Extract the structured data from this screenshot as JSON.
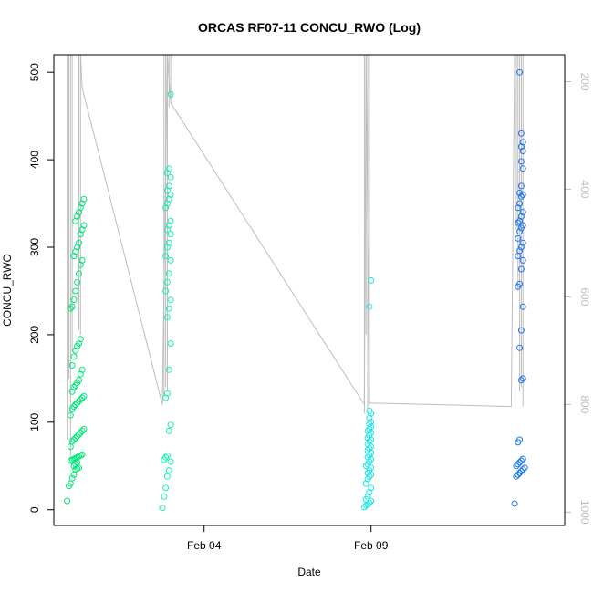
{
  "chart_data": {
    "type": "scatter",
    "title": "ORCAS RF07-11 CONCU_RWO (Log)",
    "xlabel": "Date",
    "ylabel": "CONCU_RWO",
    "x_ticks": [
      "Feb 04",
      "Feb 09"
    ],
    "x_tick_days": [
      4,
      9
    ],
    "xlim_days": [
      -0.5,
      14.8
    ],
    "ylim": [
      -18,
      520
    ],
    "y_ticks": [
      0,
      100,
      200,
      300,
      400,
      500
    ],
    "y2_ticks": [
      200,
      400,
      600,
      800,
      1000
    ],
    "y2lim": [
      1025,
      150
    ],
    "grid": false,
    "colors": {
      "series_a": "#00e676",
      "series_b": "#14f0b4",
      "series_c": "#1ee6e6",
      "series_d": "#1e78f0",
      "trace": "#bdbdbd",
      "frame": "#000000"
    },
    "series": [
      {
        "color_key": "series_a",
        "x": [
          -0.1,
          -0.05,
          0.0,
          0.05,
          0.1,
          0.15,
          0.2,
          0.25,
          0.1,
          0.15,
          0.2,
          0.0,
          0.05,
          0.1,
          0.15,
          0.2,
          0.25,
          0.3,
          0.35,
          0.0,
          0.05,
          0.1,
          0.15,
          0.2,
          0.25,
          0.3,
          0.35,
          0.4,
          0.0,
          0.05,
          0.1,
          0.15,
          0.2,
          0.25,
          0.3,
          0.35,
          0.4,
          0.05,
          0.1,
          0.15,
          0.2,
          0.25,
          0.3,
          0.35,
          0.05,
          0.1,
          0.15,
          0.2,
          0.25,
          0.3,
          0.0,
          0.05,
          0.1,
          0.15,
          0.2,
          0.25,
          0.3,
          0.35,
          0.1,
          0.15,
          0.2,
          0.25,
          0.3,
          0.35,
          0.4,
          0.15,
          0.2,
          0.25,
          0.3,
          0.35,
          0.4
        ],
        "y": [
          10,
          27,
          30,
          36,
          40,
          46,
          47,
          48,
          50,
          52,
          54,
          56,
          57,
          58,
          59,
          60,
          61,
          62,
          63,
          72,
          78,
          80,
          82,
          84,
          86,
          88,
          90,
          92,
          108,
          115,
          118,
          120,
          122,
          124,
          126,
          128,
          130,
          135,
          140,
          142,
          145,
          148,
          155,
          160,
          165,
          175,
          182,
          187,
          190,
          195,
          230,
          232,
          240,
          250,
          260,
          270,
          280,
          285,
          290,
          295,
          300,
          305,
          315,
          320,
          325,
          330,
          335,
          340,
          345,
          350,
          355
        ]
      },
      {
        "color_key": "series_b",
        "x": [
          2.75,
          2.8,
          2.85,
          2.9,
          2.95,
          3.0,
          2.8,
          2.85,
          2.9,
          2.95,
          3.0,
          2.85,
          2.9,
          2.95,
          3.0,
          2.9,
          2.95,
          3.0,
          2.85,
          2.9,
          2.95,
          3.0,
          2.85,
          2.9,
          2.95,
          3.0,
          2.9,
          2.95,
          3.0,
          2.85,
          2.9,
          2.95,
          3.0,
          2.9,
          2.95,
          3.0,
          2.9,
          2.95,
          3.0
        ],
        "y": [
          2,
          15,
          25,
          38,
          45,
          55,
          57,
          60,
          62,
          90,
          97,
          128,
          133,
          160,
          190,
          220,
          230,
          240,
          250,
          260,
          270,
          285,
          290,
          300,
          305,
          315,
          320,
          325,
          330,
          345,
          350,
          355,
          360,
          365,
          370,
          380,
          385,
          390,
          475
        ]
      },
      {
        "color_key": "series_c",
        "x": [
          8.8,
          8.85,
          8.9,
          8.95,
          9.0,
          8.85,
          8.9,
          8.95,
          9.0,
          8.85,
          8.9,
          8.95,
          9.0,
          8.9,
          8.95,
          9.0,
          8.85,
          8.9,
          8.95,
          9.0,
          8.9,
          8.95,
          9.0,
          8.9,
          8.95,
          9.0,
          8.9,
          8.95,
          9.0,
          8.9,
          8.95,
          9.0,
          8.9,
          8.95,
          9.0,
          8.95,
          9.0,
          8.95,
          9.0,
          8.95,
          8.95,
          9.0
        ],
        "y": [
          3,
          5,
          6,
          8,
          10,
          12,
          15,
          20,
          25,
          30,
          35,
          38,
          40,
          42,
          45,
          48,
          50,
          52,
          55,
          58,
          60,
          62,
          65,
          68,
          70,
          72,
          75,
          78,
          80,
          82,
          85,
          88,
          90,
          92,
          95,
          98,
          100,
          105,
          110,
          113,
          232,
          262
        ]
      },
      {
        "color_key": "series_d",
        "x": [
          13.3,
          13.35,
          13.4,
          13.45,
          13.5,
          13.55,
          13.6,
          13.35,
          13.4,
          13.45,
          13.5,
          13.55,
          13.4,
          13.45,
          13.5,
          13.55,
          13.45,
          13.5,
          13.55,
          13.4,
          13.45,
          13.5,
          13.55,
          13.4,
          13.45,
          13.5,
          13.55,
          13.4,
          13.45,
          13.5,
          13.55,
          13.4,
          13.45,
          13.5,
          13.55,
          13.4,
          13.45,
          13.5,
          13.55,
          13.45,
          13.5,
          13.55,
          13.5,
          13.55,
          13.5,
          13.55,
          13.5,
          13.45
        ],
        "y": [
          7,
          38,
          40,
          42,
          44,
          46,
          48,
          50,
          52,
          54,
          56,
          58,
          77,
          80,
          148,
          150,
          185,
          205,
          232,
          255,
          258,
          275,
          285,
          290,
          296,
          300,
          305,
          310,
          318,
          322,
          325,
          328,
          330,
          335,
          340,
          345,
          350,
          358,
          360,
          362,
          370,
          390,
          398,
          410,
          415,
          420,
          430,
          500
        ]
      }
    ],
    "trace": {
      "color_key": "trace",
      "path": [
        [
          0.3,
          2000
        ],
        [
          0.35,
          482
        ],
        [
          2.75,
          120
        ],
        [
          2.9,
          2000
        ],
        [
          3.0,
          465
        ],
        [
          8.8,
          120
        ],
        [
          8.85,
          2000
        ],
        [
          8.95,
          122
        ],
        [
          13.2,
          118
        ],
        [
          13.3,
          2000
        ]
      ],
      "spikes": [
        {
          "x": -0.1,
          "y_from": 520,
          "y_to": 80
        },
        {
          "x": -0.05,
          "y_from": 520,
          "y_to": 150
        },
        {
          "x": 0.0,
          "y_from": 520,
          "y_to": 60
        },
        {
          "x": 0.05,
          "y_from": 520,
          "y_to": 180
        },
        {
          "x": 0.25,
          "y_from": 520,
          "y_to": 205
        },
        {
          "x": 0.3,
          "y_from": 520,
          "y_to": 200
        },
        {
          "x": 2.8,
          "y_from": 520,
          "y_to": 130
        },
        {
          "x": 2.85,
          "y_from": 520,
          "y_to": 140
        },
        {
          "x": 2.9,
          "y_from": 520,
          "y_to": 135
        },
        {
          "x": 2.95,
          "y_from": 520,
          "y_to": 460
        },
        {
          "x": 3.0,
          "y_from": 520,
          "y_to": 465
        },
        {
          "x": 8.8,
          "y_from": 520,
          "y_to": 110
        },
        {
          "x": 8.85,
          "y_from": 520,
          "y_to": 200
        },
        {
          "x": 8.9,
          "y_from": 520,
          "y_to": 115
        },
        {
          "x": 8.95,
          "y_from": 520,
          "y_to": 120
        },
        {
          "x": 13.35,
          "y_from": 520,
          "y_to": 320
        },
        {
          "x": 13.4,
          "y_from": 520,
          "y_to": 250
        },
        {
          "x": 13.45,
          "y_from": 520,
          "y_to": 135
        },
        {
          "x": 13.5,
          "y_from": 520,
          "y_to": 140
        },
        {
          "x": 13.55,
          "y_from": 520,
          "y_to": 118
        }
      ]
    }
  }
}
